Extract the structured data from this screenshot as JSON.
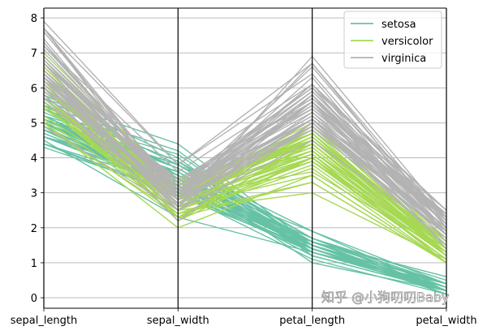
{
  "chart_data": {
    "type": "parallel_coordinates",
    "axes": [
      "sepal_length",
      "sepal_width",
      "petal_length",
      "petal_width"
    ],
    "ylim": [
      -0.3,
      8.28
    ],
    "yticks": [
      0,
      1,
      2,
      3,
      4,
      5,
      6,
      7,
      8
    ],
    "grid": true,
    "legend_position": "top-right",
    "series": [
      {
        "name": "setosa",
        "color": "#66c2a5",
        "rows": [
          [
            5.1,
            3.5,
            1.4,
            0.2
          ],
          [
            4.9,
            3.0,
            1.4,
            0.2
          ],
          [
            4.7,
            3.2,
            1.3,
            0.2
          ],
          [
            4.6,
            3.1,
            1.5,
            0.2
          ],
          [
            5.0,
            3.6,
            1.4,
            0.2
          ],
          [
            5.4,
            3.9,
            1.7,
            0.4
          ],
          [
            4.6,
            3.4,
            1.4,
            0.3
          ],
          [
            5.0,
            3.4,
            1.5,
            0.2
          ],
          [
            4.4,
            2.9,
            1.4,
            0.2
          ],
          [
            4.9,
            3.1,
            1.5,
            0.1
          ],
          [
            5.4,
            3.7,
            1.5,
            0.2
          ],
          [
            4.8,
            3.4,
            1.6,
            0.2
          ],
          [
            4.8,
            3.0,
            1.4,
            0.1
          ],
          [
            4.3,
            3.0,
            1.1,
            0.1
          ],
          [
            5.8,
            4.0,
            1.2,
            0.2
          ],
          [
            5.7,
            4.4,
            1.5,
            0.4
          ],
          [
            5.4,
            3.9,
            1.3,
            0.4
          ],
          [
            5.1,
            3.5,
            1.4,
            0.3
          ],
          [
            5.7,
            3.8,
            1.7,
            0.3
          ],
          [
            5.1,
            3.8,
            1.5,
            0.3
          ],
          [
            5.4,
            3.4,
            1.7,
            0.2
          ],
          [
            5.1,
            3.7,
            1.5,
            0.4
          ],
          [
            4.6,
            3.6,
            1.0,
            0.2
          ],
          [
            5.1,
            3.3,
            1.7,
            0.5
          ],
          [
            4.8,
            3.4,
            1.9,
            0.2
          ],
          [
            5.0,
            3.0,
            1.6,
            0.2
          ],
          [
            5.0,
            3.4,
            1.6,
            0.4
          ],
          [
            5.2,
            3.5,
            1.5,
            0.2
          ],
          [
            5.2,
            3.4,
            1.4,
            0.2
          ],
          [
            4.7,
            3.2,
            1.6,
            0.2
          ],
          [
            4.8,
            3.1,
            1.6,
            0.2
          ],
          [
            5.4,
            3.4,
            1.5,
            0.4
          ],
          [
            5.2,
            4.1,
            1.5,
            0.1
          ],
          [
            5.5,
            4.2,
            1.4,
            0.2
          ],
          [
            4.9,
            3.1,
            1.5,
            0.1
          ],
          [
            5.0,
            3.2,
            1.2,
            0.2
          ],
          [
            5.5,
            3.5,
            1.3,
            0.2
          ],
          [
            4.9,
            3.1,
            1.5,
            0.1
          ],
          [
            4.4,
            3.0,
            1.3,
            0.2
          ],
          [
            5.1,
            3.4,
            1.5,
            0.2
          ],
          [
            5.0,
            3.5,
            1.3,
            0.3
          ],
          [
            4.5,
            2.3,
            1.3,
            0.3
          ],
          [
            4.4,
            3.2,
            1.3,
            0.2
          ],
          [
            5.0,
            3.5,
            1.6,
            0.6
          ],
          [
            5.1,
            3.8,
            1.9,
            0.4
          ],
          [
            4.8,
            3.0,
            1.4,
            0.3
          ],
          [
            5.1,
            3.8,
            1.6,
            0.2
          ],
          [
            4.6,
            3.2,
            1.4,
            0.2
          ],
          [
            5.3,
            3.7,
            1.5,
            0.2
          ],
          [
            5.0,
            3.3,
            1.4,
            0.2
          ]
        ]
      },
      {
        "name": "versicolor",
        "color": "#a6d854",
        "rows": [
          [
            7.0,
            3.2,
            4.7,
            1.4
          ],
          [
            6.4,
            3.2,
            4.5,
            1.5
          ],
          [
            6.9,
            3.1,
            4.9,
            1.5
          ],
          [
            5.5,
            2.3,
            4.0,
            1.3
          ],
          [
            6.5,
            2.8,
            4.6,
            1.5
          ],
          [
            5.7,
            2.8,
            4.5,
            1.3
          ],
          [
            6.3,
            3.3,
            4.7,
            1.6
          ],
          [
            4.9,
            2.4,
            3.3,
            1.0
          ],
          [
            6.6,
            2.9,
            4.6,
            1.3
          ],
          [
            5.2,
            2.7,
            3.9,
            1.4
          ],
          [
            5.0,
            2.0,
            3.5,
            1.0
          ],
          [
            5.9,
            3.0,
            4.2,
            1.5
          ],
          [
            6.0,
            2.2,
            4.0,
            1.0
          ],
          [
            6.1,
            2.9,
            4.7,
            1.4
          ],
          [
            5.6,
            2.9,
            3.6,
            1.3
          ],
          [
            6.7,
            3.1,
            4.4,
            1.4
          ],
          [
            5.6,
            3.0,
            4.5,
            1.5
          ],
          [
            5.8,
            2.7,
            4.1,
            1.0
          ],
          [
            6.2,
            2.2,
            4.5,
            1.5
          ],
          [
            5.6,
            2.5,
            3.9,
            1.1
          ],
          [
            5.9,
            3.2,
            4.8,
            1.8
          ],
          [
            6.1,
            2.8,
            4.0,
            1.3
          ],
          [
            6.3,
            2.5,
            4.9,
            1.5
          ],
          [
            6.1,
            2.8,
            4.7,
            1.2
          ],
          [
            6.4,
            2.9,
            4.3,
            1.3
          ],
          [
            6.6,
            3.0,
            4.4,
            1.4
          ],
          [
            6.8,
            2.8,
            4.8,
            1.4
          ],
          [
            6.7,
            3.0,
            5.0,
            1.7
          ],
          [
            6.0,
            2.9,
            4.5,
            1.5
          ],
          [
            5.7,
            2.6,
            3.5,
            1.0
          ],
          [
            5.5,
            2.4,
            3.8,
            1.1
          ],
          [
            5.5,
            2.4,
            3.7,
            1.0
          ],
          [
            5.8,
            2.7,
            3.9,
            1.2
          ],
          [
            6.0,
            2.7,
            5.1,
            1.6
          ],
          [
            5.4,
            3.0,
            4.5,
            1.5
          ],
          [
            6.0,
            3.4,
            4.5,
            1.6
          ],
          [
            6.7,
            3.1,
            4.7,
            1.5
          ],
          [
            6.3,
            2.3,
            4.4,
            1.3
          ],
          [
            5.6,
            3.0,
            4.1,
            1.3
          ],
          [
            5.5,
            2.5,
            4.0,
            1.3
          ],
          [
            5.5,
            2.6,
            4.4,
            1.2
          ],
          [
            6.1,
            3.0,
            4.6,
            1.4
          ],
          [
            5.8,
            2.6,
            4.0,
            1.2
          ],
          [
            5.0,
            2.3,
            3.3,
            1.0
          ],
          [
            5.6,
            2.7,
            4.2,
            1.3
          ],
          [
            5.7,
            3.0,
            4.2,
            1.2
          ],
          [
            5.7,
            2.9,
            4.2,
            1.3
          ],
          [
            6.2,
            2.9,
            4.3,
            1.3
          ],
          [
            5.1,
            2.5,
            3.0,
            1.1
          ],
          [
            5.7,
            2.8,
            4.1,
            1.3
          ]
        ]
      },
      {
        "name": "virginica",
        "color": "#b3b3b3",
        "rows": [
          [
            6.3,
            3.3,
            6.0,
            2.5
          ],
          [
            5.8,
            2.7,
            5.1,
            1.9
          ],
          [
            7.1,
            3.0,
            5.9,
            2.1
          ],
          [
            6.3,
            2.9,
            5.6,
            1.8
          ],
          [
            6.5,
            3.0,
            5.8,
            2.2
          ],
          [
            7.6,
            3.0,
            6.6,
            2.1
          ],
          [
            4.9,
            2.5,
            4.5,
            1.7
          ],
          [
            7.3,
            2.9,
            6.3,
            1.8
          ],
          [
            6.7,
            2.5,
            5.8,
            1.8
          ],
          [
            7.2,
            3.6,
            6.1,
            2.5
          ],
          [
            6.5,
            3.2,
            5.1,
            2.0
          ],
          [
            6.4,
            2.7,
            5.3,
            1.9
          ],
          [
            6.8,
            3.0,
            5.5,
            2.1
          ],
          [
            5.7,
            2.5,
            5.0,
            2.0
          ],
          [
            5.8,
            2.8,
            5.1,
            2.4
          ],
          [
            6.4,
            3.2,
            5.3,
            2.3
          ],
          [
            6.5,
            3.0,
            5.5,
            1.8
          ],
          [
            7.7,
            3.8,
            6.7,
            2.2
          ],
          [
            7.7,
            2.6,
            6.9,
            2.3
          ],
          [
            6.0,
            2.2,
            5.0,
            1.5
          ],
          [
            6.9,
            3.2,
            5.7,
            2.3
          ],
          [
            5.6,
            2.8,
            4.9,
            2.0
          ],
          [
            7.7,
            2.8,
            6.7,
            2.0
          ],
          [
            6.3,
            2.7,
            4.9,
            1.8
          ],
          [
            6.7,
            3.3,
            5.7,
            2.1
          ],
          [
            7.2,
            3.2,
            6.0,
            1.8
          ],
          [
            6.2,
            2.8,
            4.8,
            1.8
          ],
          [
            6.1,
            3.0,
            4.9,
            1.8
          ],
          [
            6.4,
            2.8,
            5.6,
            2.1
          ],
          [
            7.2,
            3.0,
            5.8,
            1.6
          ],
          [
            7.4,
            2.8,
            6.1,
            1.9
          ],
          [
            7.9,
            3.8,
            6.4,
            2.0
          ],
          [
            6.4,
            2.8,
            5.6,
            2.2
          ],
          [
            6.3,
            2.8,
            5.1,
            1.5
          ],
          [
            6.1,
            2.6,
            5.6,
            1.4
          ],
          [
            7.7,
            3.0,
            6.1,
            2.3
          ],
          [
            6.3,
            3.4,
            5.6,
            2.4
          ],
          [
            6.4,
            3.1,
            5.5,
            1.8
          ],
          [
            6.0,
            3.0,
            4.8,
            1.8
          ],
          [
            6.9,
            3.1,
            5.4,
            2.1
          ],
          [
            6.7,
            3.1,
            5.6,
            2.4
          ],
          [
            6.9,
            3.1,
            5.1,
            2.3
          ],
          [
            5.8,
            2.7,
            5.1,
            1.9
          ],
          [
            6.8,
            3.2,
            5.9,
            2.3
          ],
          [
            6.7,
            3.3,
            5.7,
            2.5
          ],
          [
            6.7,
            3.0,
            5.2,
            2.3
          ],
          [
            6.3,
            2.5,
            5.0,
            1.9
          ],
          [
            6.5,
            3.0,
            5.2,
            2.0
          ],
          [
            6.2,
            3.4,
            5.4,
            2.3
          ],
          [
            5.9,
            3.0,
            5.1,
            1.8
          ]
        ]
      }
    ]
  },
  "legend": {
    "items": [
      "setosa",
      "versicolor",
      "virginica"
    ]
  },
  "watermark": "知乎 @小狗叨叨Baby"
}
